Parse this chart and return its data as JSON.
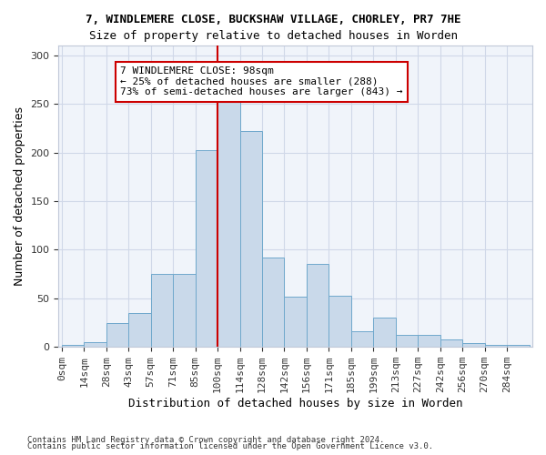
{
  "title": "7, WINDLEMERE CLOSE, BUCKSHAW VILLAGE, CHORLEY, PR7 7HE",
  "subtitle": "Size of property relative to detached houses in Worden",
  "xlabel": "Distribution of detached houses by size in Worden",
  "ylabel": "Number of detached properties",
  "bar_color": "#c9d9ea",
  "bar_edge_color": "#6fa8cc",
  "bin_labels": [
    "0sqm",
    "14sqm",
    "28sqm",
    "43sqm",
    "57sqm",
    "71sqm",
    "85sqm",
    "100sqm",
    "114sqm",
    "128sqm",
    "142sqm",
    "156sqm",
    "171sqm",
    "185sqm",
    "199sqm",
    "213sqm",
    "227sqm",
    "242sqm",
    "256sqm",
    "270sqm",
    "284sqm"
  ],
  "bar_heights": [
    2,
    5,
    25,
    35,
    75,
    75,
    202,
    252,
    222,
    92,
    52,
    85,
    53,
    16,
    30,
    12,
    12,
    8,
    4,
    2,
    2
  ],
  "ylim": [
    0,
    310
  ],
  "yticks": [
    0,
    50,
    100,
    150,
    200,
    250,
    300
  ],
  "property_line_x": 98,
  "property_line_label": "7 WINDLEMERE CLOSE: 98sqm",
  "annotation_line1": "← 25% of detached houses are smaller (288)",
  "annotation_line2": "73% of semi-detached houses are larger (843) →",
  "annotation_box_color": "#ffffff",
  "annotation_box_edge": "#cc0000",
  "vline_color": "#cc0000",
  "grid_color": "#d0d8e8",
  "background_color": "#f0f4fa",
  "footnote1": "Contains HM Land Registry data © Crown copyright and database right 2024.",
  "footnote2": "Contains public sector information licensed under the Open Government Licence v3.0."
}
